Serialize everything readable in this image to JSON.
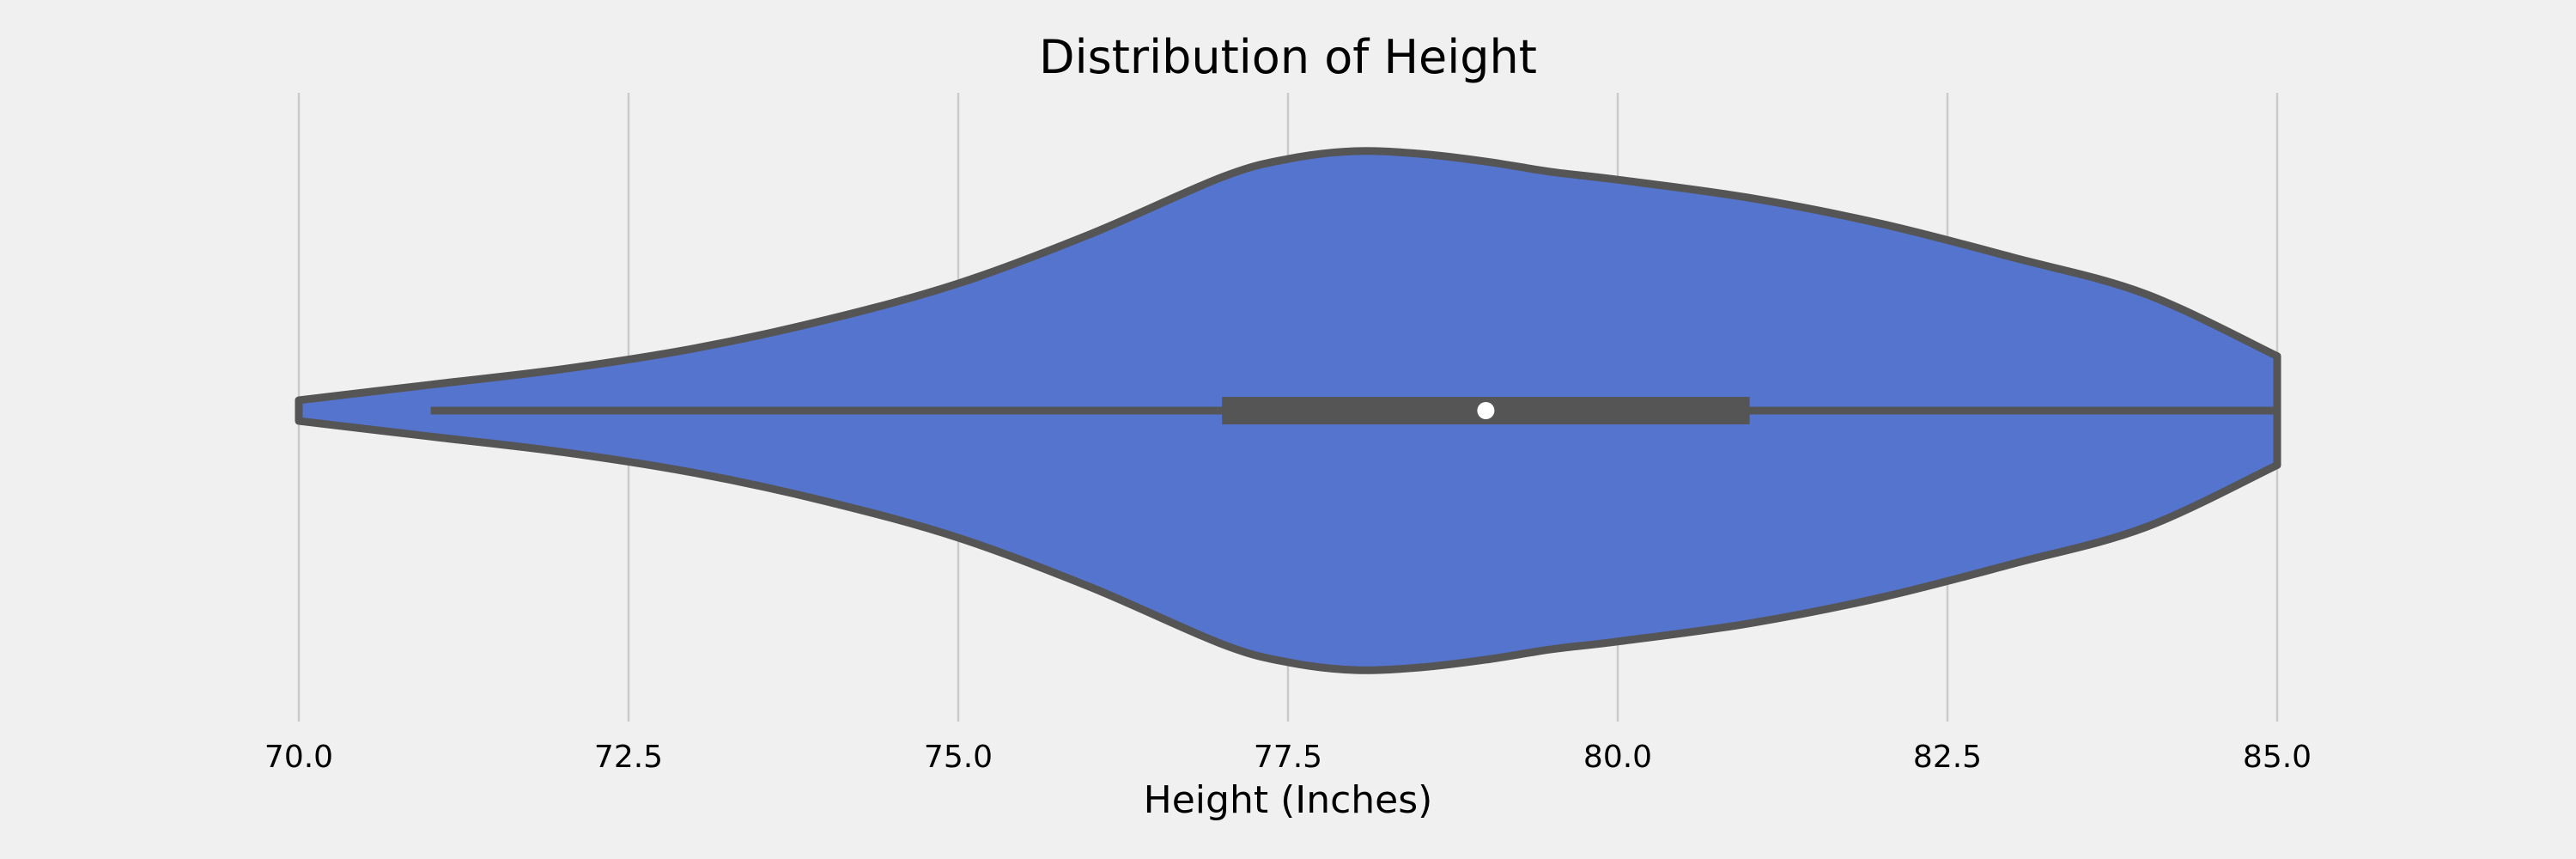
{
  "chart_data": {
    "type": "violin",
    "orientation": "horizontal",
    "title": "Distribution of Height",
    "xlabel": "Height (Inches)",
    "ylabel": "",
    "xlim": [
      70.0,
      85.0
    ],
    "xticks": [
      70.0,
      72.5,
      75.0,
      77.5,
      80.0,
      82.5,
      85.0
    ],
    "xtick_labels": [
      "70.0",
      "72.5",
      "75.0",
      "77.5",
      "80.0",
      "82.5",
      "85.0"
    ],
    "grid": "vertical",
    "density": {
      "x": [
        70.0,
        71.0,
        72.0,
        73.0,
        74.0,
        75.0,
        76.0,
        77.0,
        77.5,
        78.0,
        78.5,
        79.0,
        79.5,
        80.0,
        81.0,
        82.0,
        83.0,
        84.0,
        85.0
      ],
      "height": [
        0.04,
        0.1,
        0.16,
        0.24,
        0.35,
        0.49,
        0.68,
        0.9,
        0.97,
        1.0,
        0.99,
        0.96,
        0.92,
        0.89,
        0.82,
        0.72,
        0.59,
        0.45,
        0.21
      ]
    },
    "box": {
      "whisker_low": 71.0,
      "q1": 77.0,
      "median": 79.0,
      "q3": 81.0,
      "whisker_high": 85.0
    },
    "colors": {
      "fill": "#5474ce",
      "edge": "#555555",
      "box": "#555555",
      "median_marker": "#ffffff",
      "background": "#f0f0f0"
    }
  }
}
